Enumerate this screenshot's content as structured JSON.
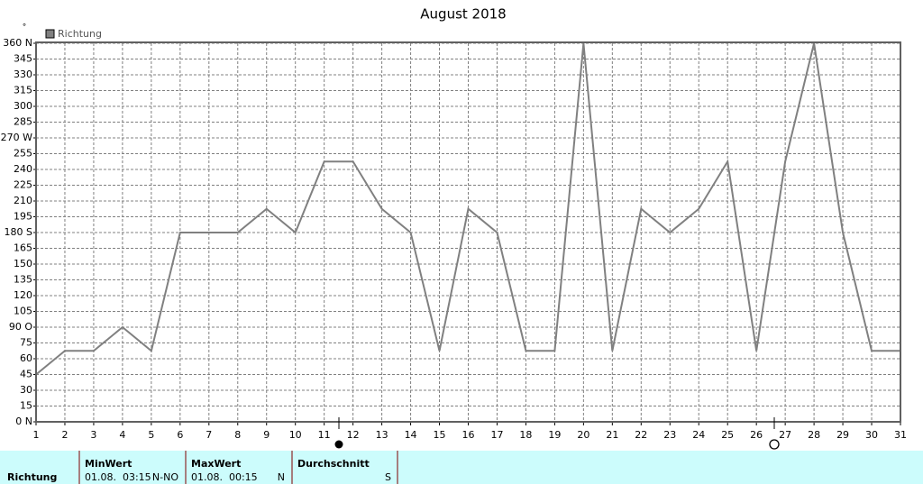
{
  "chart_data": {
    "type": "line",
    "title": "August 2018",
    "y_unit": "°",
    "x": [
      1,
      2,
      3,
      4,
      5,
      6,
      7,
      8,
      9,
      10,
      11,
      12,
      13,
      14,
      15,
      16,
      17,
      18,
      19,
      20,
      21,
      22,
      23,
      24,
      25,
      26,
      27,
      28,
      29,
      30,
      31
    ],
    "xlim": [
      1,
      31
    ],
    "xticks": [
      1,
      2,
      3,
      4,
      5,
      6,
      7,
      8,
      9,
      10,
      11,
      12,
      13,
      14,
      15,
      16,
      17,
      18,
      19,
      20,
      21,
      22,
      23,
      24,
      25,
      26,
      27,
      28,
      29,
      30,
      31
    ],
    "ylim": [
      0,
      360
    ],
    "yticks": [
      {
        "value": 0,
        "label": "0 N"
      },
      15,
      30,
      45,
      60,
      75,
      {
        "value": 90,
        "label": "90 O"
      },
      105,
      120,
      135,
      150,
      165,
      {
        "value": 180,
        "label": "180 S"
      },
      195,
      210,
      225,
      240,
      255,
      {
        "value": 270,
        "label": "270 W"
      },
      285,
      300,
      315,
      330,
      345,
      {
        "value": 360,
        "label": "360 N"
      }
    ],
    "grid": true,
    "series": [
      {
        "name": "Richtung",
        "color": "#808080",
        "values": [
          45,
          67.5,
          67.5,
          90,
          67.5,
          180,
          180,
          180,
          202.5,
          180,
          247.5,
          247.5,
          202.5,
          180,
          67.5,
          202.5,
          180,
          67.5,
          67.5,
          360,
          67.5,
          202.5,
          180,
          202.5,
          247.5,
          67.5,
          247.5,
          360,
          180,
          67.5,
          67.5
        ]
      }
    ]
  },
  "summary_table": {
    "row_label": "Richtung",
    "columns": [
      {
        "header": "MinWert",
        "time": "01.08.  03:15",
        "value": "N-NO"
      },
      {
        "header": "MaxWert",
        "time": "01.08.  00:15",
        "value": "N"
      },
      {
        "header": "Durchschnitt",
        "value": "S"
      }
    ]
  }
}
